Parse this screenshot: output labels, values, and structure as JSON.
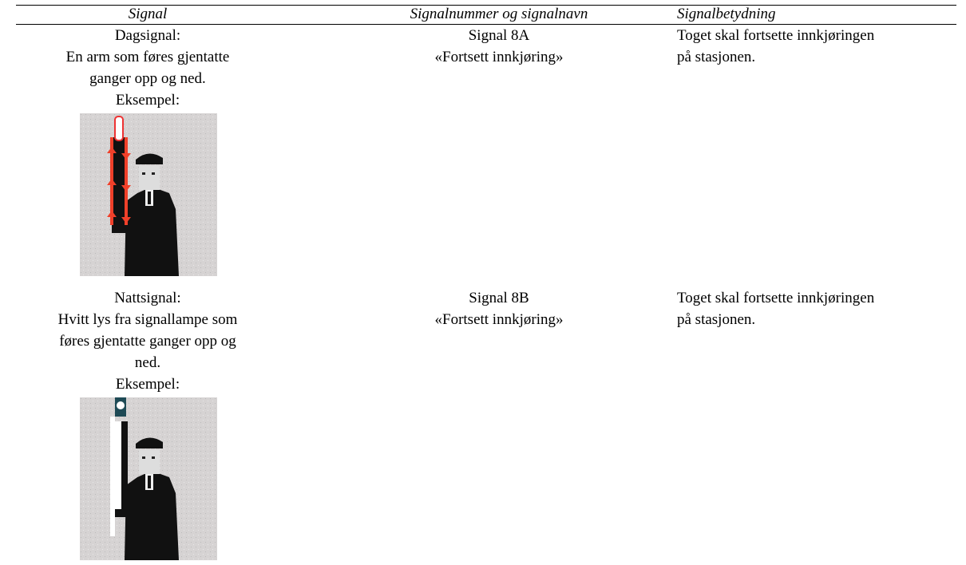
{
  "table": {
    "header": [
      "Signal",
      "Signalnummer og signalnavn",
      "Signalbetydning"
    ],
    "rows": [
      {
        "signal": [
          "Dagsignal:",
          "En arm som føres gjentatte",
          "ganger opp og ned.",
          "Eksempel:"
        ],
        "number": "Signal 8A",
        "name": "«Fortsett innkjøring»",
        "meaning": [
          "Toget skal fortsette innkjøringen",
          "på stasjonen."
        ]
      },
      {
        "signal": [
          "Nattsignal:",
          "Hvitt lys fra signallampe som",
          "føres gjentatte ganger opp og",
          "ned.",
          "Eksempel:"
        ],
        "number": "Signal 8B",
        "name": "«Fortsett innkjøring»",
        "meaning": [
          "Toget skal fortsette innkjøringen",
          "på stasjonen."
        ]
      }
    ]
  }
}
